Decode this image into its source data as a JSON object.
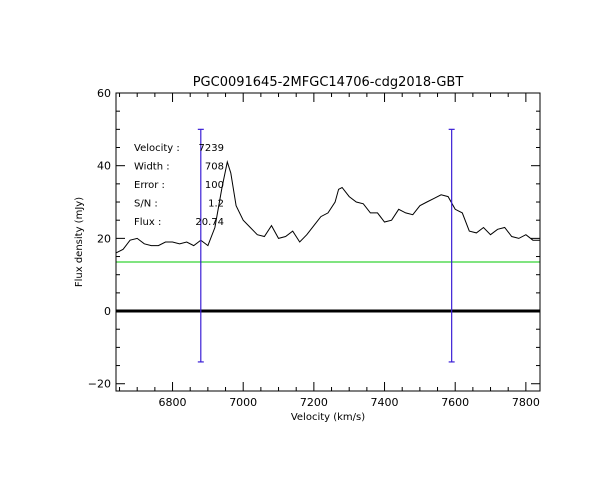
{
  "chart_data": {
    "type": "line",
    "title": "PGC0091645-2MFGC14706-cdg2018-GBT",
    "xlabel": "Velocity (km/s)",
    "ylabel": "Flux density (mJy)",
    "xlim": [
      6640,
      7840
    ],
    "ylim": [
      -22,
      60
    ],
    "x_ticks": [
      6800,
      7000,
      7200,
      7400,
      7600,
      7800
    ],
    "y_ticks": [
      -20,
      0,
      20,
      40,
      60
    ],
    "grid": false,
    "colors": {
      "spectrum": "#000000",
      "baseline": "#00c800",
      "markers": "#3b1fd6",
      "zero": "#000000"
    },
    "series": [
      {
        "x": [
          6640,
          6660,
          6680,
          6700,
          6720,
          6740,
          6760,
          6780,
          6800,
          6820,
          6840,
          6860,
          6880,
          6900,
          6920,
          6940,
          6955,
          6965,
          6980,
          7000,
          7020,
          7040,
          7060,
          7080,
          7100,
          7120,
          7140,
          7160,
          7180,
          7200,
          7220,
          7240,
          7260,
          7270,
          7280,
          7300,
          7320,
          7340,
          7360,
          7380,
          7400,
          7420,
          7440,
          7460,
          7480,
          7500,
          7520,
          7540,
          7560,
          7580,
          7600,
          7620,
          7640,
          7660,
          7680,
          7700,
          7720,
          7740,
          7760,
          7780,
          7800,
          7820,
          7840
        ],
        "y": [
          16,
          17,
          19.5,
          20,
          18.5,
          18,
          18,
          19,
          19,
          18.5,
          19,
          18,
          19.5,
          18,
          23,
          34,
          41,
          38,
          29,
          25,
          23,
          21,
          20.5,
          23.5,
          20,
          20.5,
          22,
          19,
          21,
          23.5,
          26,
          27,
          30,
          33.5,
          34,
          31.5,
          30,
          29.5,
          27,
          27,
          24.5,
          25,
          28,
          27,
          26.5,
          29,
          30,
          31,
          32,
          31.5,
          28,
          27,
          22,
          21.5,
          23,
          21,
          22.5,
          23,
          20.5,
          20,
          21,
          19.5,
          19.5
        ]
      }
    ],
    "baseline_y": 13.5,
    "zero_line_y": 0,
    "markers": [
      {
        "x": 6880,
        "y_bottom": -14,
        "y_top": 50
      },
      {
        "x": 7590,
        "y_bottom": -14,
        "y_top": 50
      }
    ],
    "annotations": [
      {
        "label": "Velocity :",
        "value": "7239"
      },
      {
        "label": "Width :",
        "value": "708"
      },
      {
        "label": "Error :",
        "value": "100"
      },
      {
        "label": "S/N :",
        "value": "1.2"
      },
      {
        "label": "Flux :",
        "value": "20.74"
      }
    ]
  }
}
